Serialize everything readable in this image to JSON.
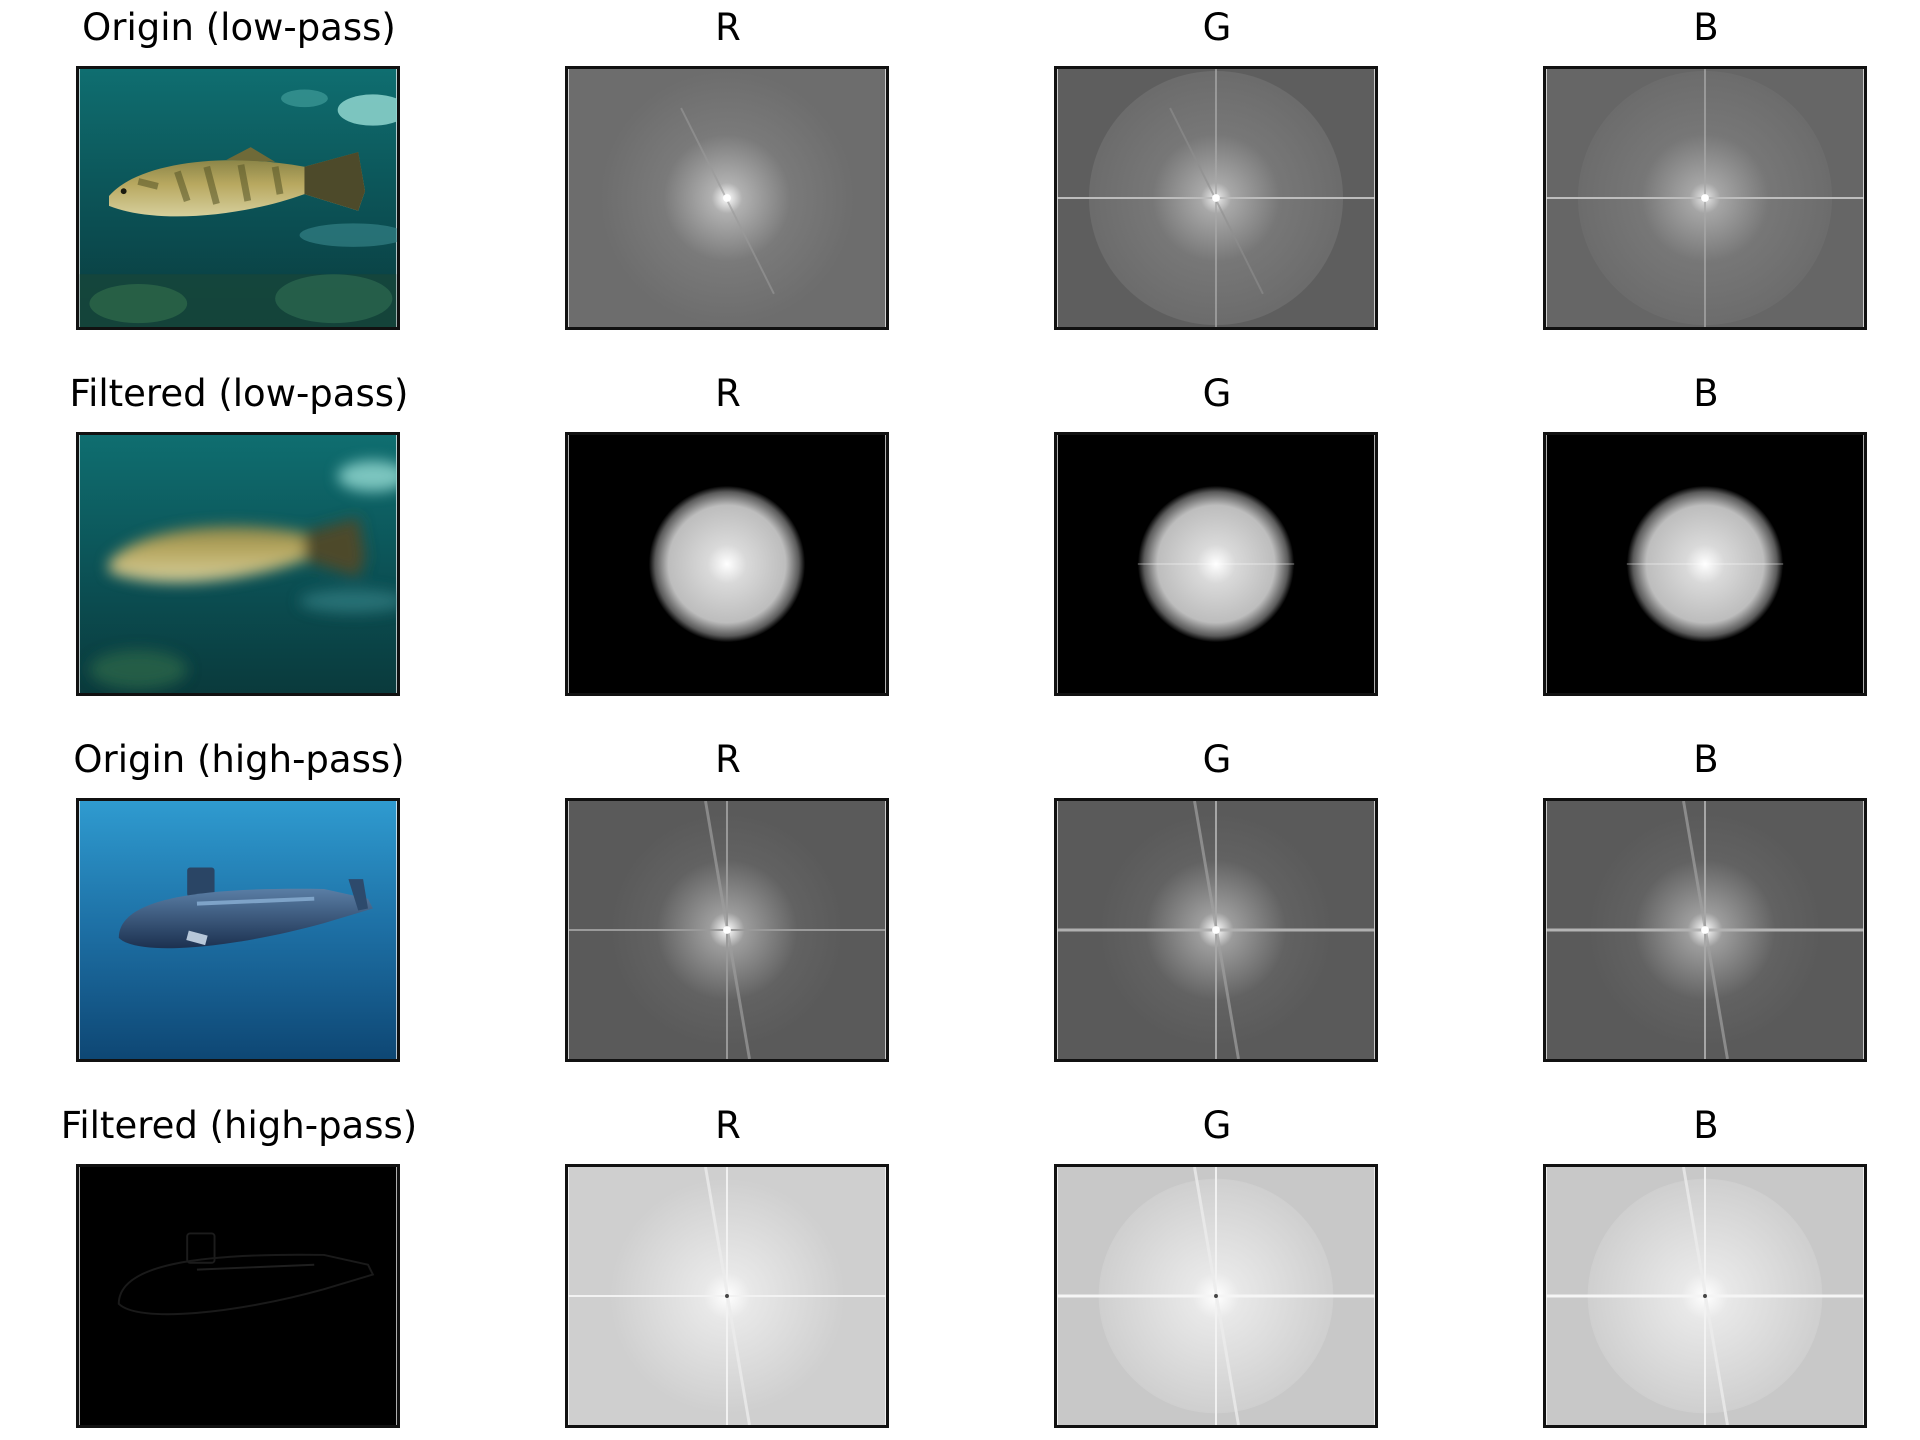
{
  "grid": {
    "rows": [
      {
        "label": "Origin (low-pass)",
        "image": "fish-photo",
        "channels": [
          "R",
          "G",
          "B"
        ],
        "spectrum_style": "raw-spectrum",
        "background_tone": "#6d6d6d"
      },
      {
        "label": "Filtered (low-pass)",
        "image": "fish-photo-blurred",
        "channels": [
          "R",
          "G",
          "B"
        ],
        "spectrum_style": "low-pass-disk",
        "background_tone": "#000000"
      },
      {
        "label": "Origin (high-pass)",
        "image": "submarine-photo",
        "channels": [
          "R",
          "G",
          "B"
        ],
        "spectrum_style": "raw-spectrum",
        "background_tone": "#5a5a5a"
      },
      {
        "label": "Filtered (high-pass)",
        "image": "submarine-photo-high-pass",
        "channels": [
          "R",
          "G",
          "B"
        ],
        "spectrum_style": "high-pass-spectrum",
        "background_tone": "#cfcfcf"
      }
    ]
  }
}
